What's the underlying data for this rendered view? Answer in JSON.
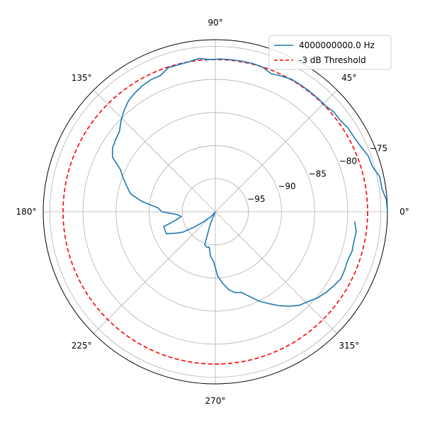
{
  "chart_data": {
    "type": "line",
    "projection": "polar",
    "theta_unit": "degrees",
    "theta_ticks": [
      0,
      45,
      90,
      135,
      180,
      225,
      270,
      315
    ],
    "theta_tick_labels": [
      "0°",
      "45°",
      "90°",
      "135°",
      "180°",
      "225°",
      "270°",
      "315°"
    ],
    "r_range": [
      -100,
      -74
    ],
    "r_ticks": [
      -95,
      -90,
      -85,
      -80,
      -75
    ],
    "r_tick_labels": [
      "−95",
      "−90",
      "−85",
      "−80",
      "−75"
    ],
    "grid": true,
    "legend_placement": "top-right",
    "series": [
      {
        "name": "4000000000.0 Hz",
        "style": "solid",
        "color": "#1f77b4",
        "theta": [
          0,
          4,
          8,
          12,
          16,
          20,
          24,
          28,
          32,
          36,
          40,
          44,
          48,
          52,
          56,
          60,
          64,
          68,
          72,
          76,
          80,
          84,
          88,
          92,
          96,
          100,
          104,
          108,
          112,
          116,
          120,
          124,
          128,
          132,
          136,
          140,
          144,
          148,
          152,
          156,
          160,
          164,
          168,
          172,
          176,
          180,
          184,
          188,
          192,
          196,
          200,
          204,
          208,
          212,
          216,
          220,
          224,
          228,
          232,
          236,
          240,
          244,
          248,
          252,
          256,
          260,
          264,
          268,
          272,
          276,
          280,
          284,
          288,
          292,
          296,
          300,
          304,
          308,
          312,
          316,
          320,
          324,
          328,
          332,
          336,
          340,
          344,
          348,
          352,
          356
        ],
        "r": [
          -74.0,
          -74.1,
          -74.6,
          -74.6,
          -75.3,
          -75.4,
          -75.9,
          -76.2,
          -76.3,
          -76.6,
          -76.6,
          -76.9,
          -76.9,
          -76.9,
          -76.9,
          -76.9,
          -77.2,
          -77.5,
          -77.0,
          -76.9,
          -76.9,
          -76.9,
          -76.9,
          -77.0,
          -76.7,
          -77.0,
          -77.1,
          -77.1,
          -77.8,
          -77.8,
          -78.0,
          -78.3,
          -78.7,
          -79.4,
          -80.2,
          -81.1,
          -81.4,
          -81.7,
          -82.4,
          -84.3,
          -85.2,
          -86.1,
          -86.9,
          -88.8,
          -91.3,
          -91.9,
          -94.2,
          -94.8,
          -93.9,
          -91.9,
          -91.9,
          -91.9,
          -93.1,
          -94.2,
          -96.1,
          -97.6,
          -98.6,
          -99.0,
          -99.5,
          -99.8,
          -99.7,
          -99.9,
          -98.0,
          -94.8,
          -94.5,
          -94.6,
          -93.2,
          -92.5,
          -90.3,
          -89.1,
          -88.0,
          -87.4,
          -87.2,
          -86.2,
          -85.0,
          -84.0,
          -82.9,
          -81.9,
          -81.0,
          -80.5,
          -79.8,
          -79.3,
          -78.9,
          -78.5,
          -78.6,
          -78.7,
          -78.5,
          -78.6,
          -78.5,
          -78.9
        ]
      },
      {
        "name": "-3 dB Threshold",
        "style": "dashed",
        "color": "#ff0000",
        "constant_r": -77.0
      }
    ]
  }
}
